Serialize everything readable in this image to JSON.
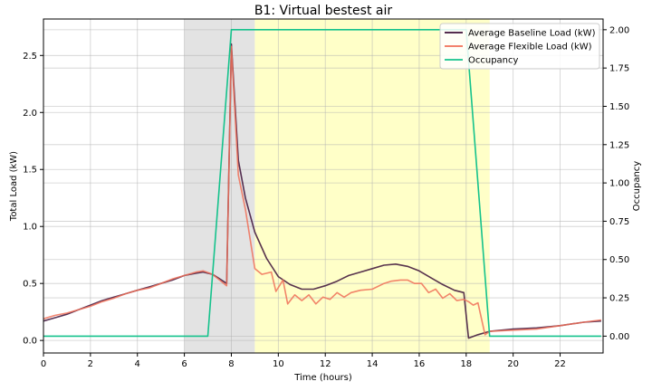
{
  "chart_data": {
    "type": "line",
    "title": "B1: Virtual bestest air",
    "xlabel": "Time (hours)",
    "ylabel_left": "Total Load (kW)",
    "ylabel_right": "Occupancy",
    "xlim": [
      0,
      23.83
    ],
    "ylim_left": [
      -0.11,
      2.82
    ],
    "ylim_right": [
      -0.11,
      2.07
    ],
    "x_ticks": [
      0,
      2,
      4,
      6,
      8,
      10,
      12,
      14,
      16,
      18,
      20,
      22
    ],
    "y_ticks_left": [
      0.0,
      0.5,
      1.0,
      1.5,
      2.0,
      2.5
    ],
    "y_ticks_left_labels": [
      "0.0",
      "0.5",
      "1.0",
      "1.5",
      "2.0",
      "2.5"
    ],
    "y_ticks_right": [
      0.0,
      0.25,
      0.5,
      0.75,
      1.0,
      1.25,
      1.5,
      1.75,
      2.0
    ],
    "y_ticks_right_labels": [
      "0.00",
      "0.25",
      "0.50",
      "0.75",
      "1.00",
      "1.25",
      "1.50",
      "1.75",
      "2.00"
    ],
    "grid": true,
    "legend_position": "top-right",
    "shaded_regions": [
      {
        "x0": 6,
        "x1": 9,
        "color": "#e3e3e3"
      },
      {
        "x0": 9,
        "x1": 19,
        "color": "#ffffc8"
      }
    ],
    "series": [
      {
        "name": "Average Baseline Load (kW)",
        "color": "#3b0f37",
        "axis": "left",
        "x": [
          0,
          0.5,
          1,
          1.5,
          2,
          2.5,
          3,
          3.5,
          4,
          4.5,
          5,
          5.5,
          6,
          6.5,
          6.8,
          7.2,
          7.5,
          7.8,
          8.0,
          8.3,
          8.6,
          9.0,
          9.5,
          10.0,
          10.5,
          11.0,
          11.5,
          12.0,
          12.5,
          13.0,
          13.5,
          14.0,
          14.5,
          15.0,
          15.5,
          16.0,
          16.5,
          17.0,
          17.5,
          17.9,
          18.1,
          18.5,
          19.0,
          20.0,
          21.0,
          22.0,
          23.0,
          23.75
        ],
        "y": [
          0.17,
          0.2,
          0.23,
          0.27,
          0.31,
          0.35,
          0.38,
          0.41,
          0.44,
          0.47,
          0.5,
          0.53,
          0.57,
          0.59,
          0.6,
          0.58,
          0.54,
          0.5,
          2.6,
          1.58,
          1.25,
          0.95,
          0.72,
          0.56,
          0.49,
          0.45,
          0.45,
          0.48,
          0.52,
          0.57,
          0.6,
          0.63,
          0.66,
          0.67,
          0.65,
          0.61,
          0.55,
          0.49,
          0.44,
          0.42,
          0.02,
          0.05,
          0.08,
          0.1,
          0.11,
          0.13,
          0.16,
          0.17
        ]
      },
      {
        "name": "Average Flexible Load (kW)",
        "color": "#f07058",
        "axis": "left",
        "x": [
          0,
          0.5,
          1,
          1.5,
          2,
          2.5,
          3,
          3.5,
          4,
          4.5,
          5,
          5.5,
          6,
          6.5,
          6.8,
          7.2,
          7.5,
          7.8,
          8.0,
          8.3,
          8.6,
          9.0,
          9.3,
          9.7,
          9.9,
          10.2,
          10.4,
          10.7,
          11.0,
          11.3,
          11.6,
          11.9,
          12.2,
          12.5,
          12.8,
          13.1,
          13.5,
          14.0,
          14.5,
          14.8,
          15.2,
          15.5,
          15.8,
          16.1,
          16.4,
          16.7,
          17.0,
          17.3,
          17.6,
          17.9,
          18.1,
          18.3,
          18.5,
          18.8,
          19.0,
          20.0,
          21.0,
          22.0,
          23.0,
          23.75
        ],
        "y": [
          0.19,
          0.22,
          0.24,
          0.27,
          0.3,
          0.34,
          0.37,
          0.41,
          0.44,
          0.46,
          0.5,
          0.54,
          0.57,
          0.6,
          0.61,
          0.58,
          0.53,
          0.48,
          2.58,
          1.45,
          1.15,
          0.63,
          0.58,
          0.6,
          0.43,
          0.53,
          0.32,
          0.4,
          0.35,
          0.4,
          0.32,
          0.38,
          0.36,
          0.42,
          0.38,
          0.42,
          0.44,
          0.45,
          0.5,
          0.52,
          0.53,
          0.53,
          0.5,
          0.5,
          0.42,
          0.45,
          0.37,
          0.41,
          0.35,
          0.36,
          0.34,
          0.31,
          0.33,
          0.05,
          0.08,
          0.09,
          0.1,
          0.13,
          0.16,
          0.18
        ]
      },
      {
        "name": "Occupancy",
        "color": "#15c28c",
        "axis": "right",
        "x": [
          0,
          7,
          8,
          18,
          19,
          23.75
        ],
        "y": [
          0,
          0,
          2,
          2,
          0,
          0
        ]
      }
    ]
  }
}
